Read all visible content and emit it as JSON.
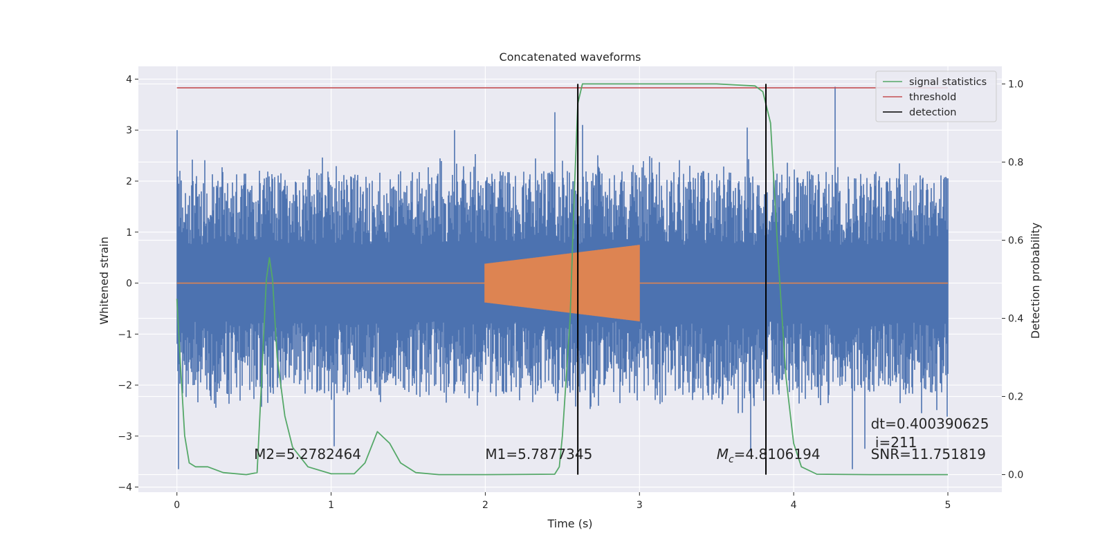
{
  "chart_data": {
    "type": "line",
    "title": "Concatenated waveforms",
    "xlabel": "Time (s)",
    "ylabel": "Whitened strain",
    "ylabel_right": "Detection probability",
    "xlim": [
      -0.25,
      5.35
    ],
    "ylim": [
      -4.1,
      4.25
    ],
    "ylim_right": [
      -0.045,
      1.045
    ],
    "x_ticks": [
      0,
      1,
      2,
      3,
      4,
      5
    ],
    "y_ticks": [
      -4,
      -3,
      -2,
      -1,
      0,
      1,
      2,
      3,
      4
    ],
    "y_ticks_right": [
      0.0,
      0.2,
      0.4,
      0.6,
      0.8,
      1.0
    ],
    "x_tick_labels": [
      "0",
      "1",
      "2",
      "3",
      "4",
      "5"
    ],
    "y_tick_labels": [
      "−4",
      "−3",
      "−2",
      "−1",
      "0",
      "1",
      "2",
      "3",
      "4"
    ],
    "y_tick_labels_right": [
      "0.0",
      "0.2",
      "0.4",
      "0.6",
      "0.8",
      "1.0"
    ],
    "grid": true,
    "legend_position": "top-right",
    "colors": {
      "strain": "#4c72b0",
      "template": "#dd8452",
      "signal_statistics": "#55a868",
      "threshold": "#c44e52",
      "detection": "#000000",
      "background": "#eaeaf2",
      "grid": "#ffffff"
    },
    "series": [
      {
        "name": "",
        "role": "strain",
        "t_range": [
          0,
          5
        ],
        "envelope_typical": 2.2,
        "spikes": [
          {
            "t": 0.0,
            "v": 3.0
          },
          {
            "t": 0.01,
            "v": -3.65
          },
          {
            "t": 1.8,
            "v": 3.0
          },
          {
            "t": 2.5,
            "v": 2.4
          },
          {
            "t": 2.63,
            "v": 3.1
          },
          {
            "t": 3.7,
            "v": 3.05
          },
          {
            "t": 4.27,
            "v": 3.85
          },
          {
            "t": 4.38,
            "v": -3.65
          },
          {
            "t": 3.72,
            "v": -3.3
          },
          {
            "t": 4.46,
            "v": -3.25
          },
          {
            "t": 1.02,
            "v": -3.2
          },
          {
            "t": 2.45,
            "v": 3.35
          }
        ]
      },
      {
        "name": "",
        "role": "template",
        "x_range": [
          2.0,
          3.0
        ],
        "amp_start": 0.38,
        "amp_end": 0.75
      },
      {
        "name": "signal statistics",
        "role": "probability",
        "axis": "right",
        "points": [
          [
            0.0,
            0.45
          ],
          [
            0.02,
            0.3
          ],
          [
            0.05,
            0.1
          ],
          [
            0.08,
            0.03
          ],
          [
            0.12,
            0.02
          ],
          [
            0.2,
            0.02
          ],
          [
            0.3,
            0.005
          ],
          [
            0.45,
            0.0
          ],
          [
            0.52,
            0.005
          ],
          [
            0.55,
            0.25
          ],
          [
            0.58,
            0.5
          ],
          [
            0.6,
            0.555
          ],
          [
            0.62,
            0.5
          ],
          [
            0.65,
            0.3
          ],
          [
            0.7,
            0.15
          ],
          [
            0.75,
            0.07
          ],
          [
            0.85,
            0.02
          ],
          [
            1.0,
            0.002
          ],
          [
            1.15,
            0.002
          ],
          [
            1.22,
            0.03
          ],
          [
            1.3,
            0.11
          ],
          [
            1.38,
            0.08
          ],
          [
            1.45,
            0.03
          ],
          [
            1.55,
            0.005
          ],
          [
            1.7,
            0.0
          ],
          [
            2.0,
            0.0
          ],
          [
            2.45,
            0.001
          ],
          [
            2.48,
            0.02
          ],
          [
            2.5,
            0.1
          ],
          [
            2.55,
            0.4
          ],
          [
            2.58,
            0.75
          ],
          [
            2.6,
            0.95
          ],
          [
            2.63,
            1.0
          ],
          [
            2.7,
            1.0
          ],
          [
            3.0,
            1.0
          ],
          [
            3.5,
            1.0
          ],
          [
            3.75,
            0.995
          ],
          [
            3.8,
            0.98
          ],
          [
            3.85,
            0.9
          ],
          [
            3.9,
            0.55
          ],
          [
            3.95,
            0.25
          ],
          [
            4.0,
            0.08
          ],
          [
            4.05,
            0.02
          ],
          [
            4.15,
            0.001
          ],
          [
            4.5,
            0.0
          ],
          [
            5.0,
            0.0
          ]
        ]
      },
      {
        "name": "threshold",
        "role": "threshold",
        "axis": "right",
        "value": 0.99,
        "x_range": [
          0,
          5
        ]
      },
      {
        "name": "detection",
        "role": "detection",
        "axis": "right",
        "x": [
          2.6,
          3.82
        ],
        "y_range": [
          0.0,
          1.0
        ]
      }
    ],
    "annotations": [
      {
        "id": "m2",
        "text": "M2=5.2782464",
        "x": 0.5,
        "y": -3.45
      },
      {
        "id": "m1",
        "text": "M1=5.7877345",
        "x": 2.0,
        "y": -3.45
      },
      {
        "id": "mc",
        "text_prefix": "M",
        "text_sub": "c",
        "text_suffix": "=4.8106194",
        "x": 3.5,
        "y": -3.45
      },
      {
        "id": "dt",
        "text": "dt=0.400390625",
        "x": 4.5,
        "y": -2.85
      },
      {
        "id": "idx",
        "text": " i=211",
        "x": 4.5,
        "y": -3.22
      },
      {
        "id": "snr",
        "text": "SNR=11.751819",
        "x": 4.5,
        "y": -3.45
      }
    ]
  }
}
